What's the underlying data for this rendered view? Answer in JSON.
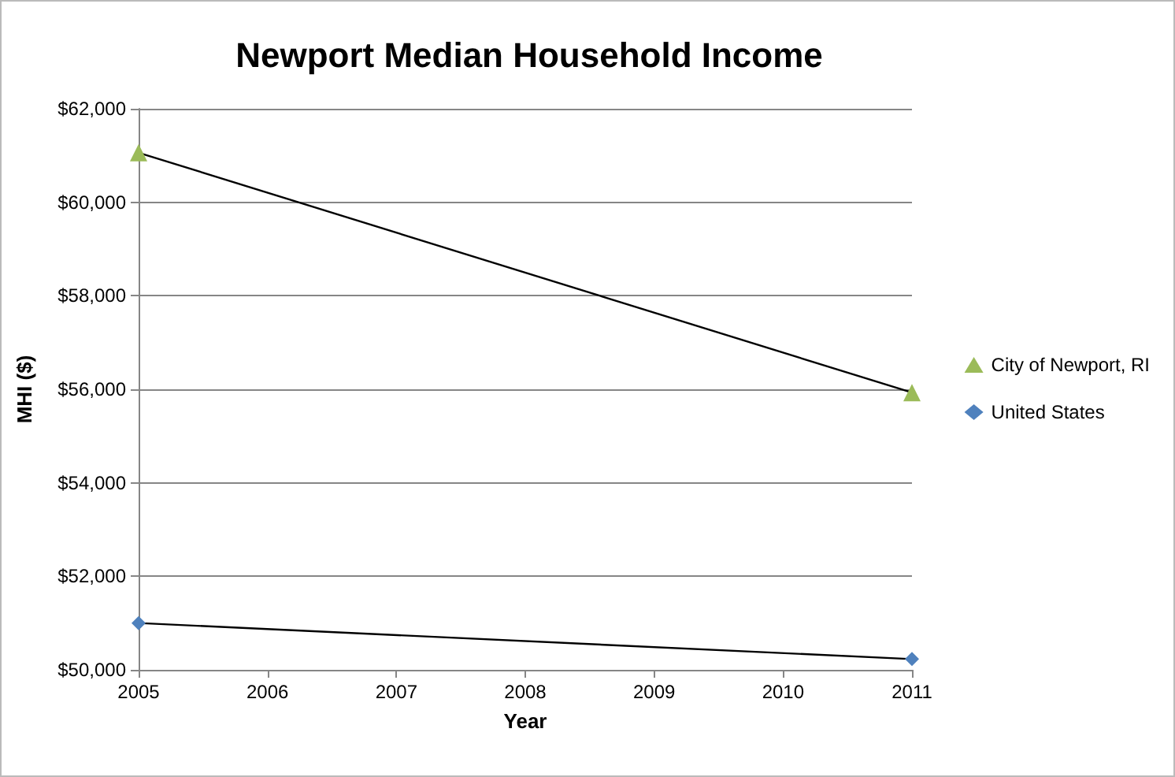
{
  "chart_data": {
    "type": "line",
    "title": "Newport Median Household Income",
    "xlabel": "Year",
    "ylabel": "MHI ($)",
    "x": [
      2005,
      2011
    ],
    "series": [
      {
        "name": "City of Newport, RI",
        "color": "#9bbb59",
        "marker": "triangle",
        "values": [
          61060,
          55930
        ]
      },
      {
        "name": "United States",
        "color": "#4f81bd",
        "marker": "diamond",
        "values": [
          51000,
          50230
        ]
      }
    ],
    "xlim": [
      2005,
      2011
    ],
    "xticks": [
      2005,
      2006,
      2007,
      2008,
      2009,
      2010,
      2011
    ],
    "ylim": [
      50000,
      62000
    ],
    "yticks": [
      {
        "value": 50000,
        "label": "$50,000"
      },
      {
        "value": 52000,
        "label": "$52,000"
      },
      {
        "value": 54000,
        "label": "$54,000"
      },
      {
        "value": 56000,
        "label": "$56,000"
      },
      {
        "value": 58000,
        "label": "$58,000"
      },
      {
        "value": 60000,
        "label": "$60,000"
      },
      {
        "value": 62000,
        "label": "$62,000"
      }
    ],
    "grid": "y",
    "legend": "right"
  }
}
